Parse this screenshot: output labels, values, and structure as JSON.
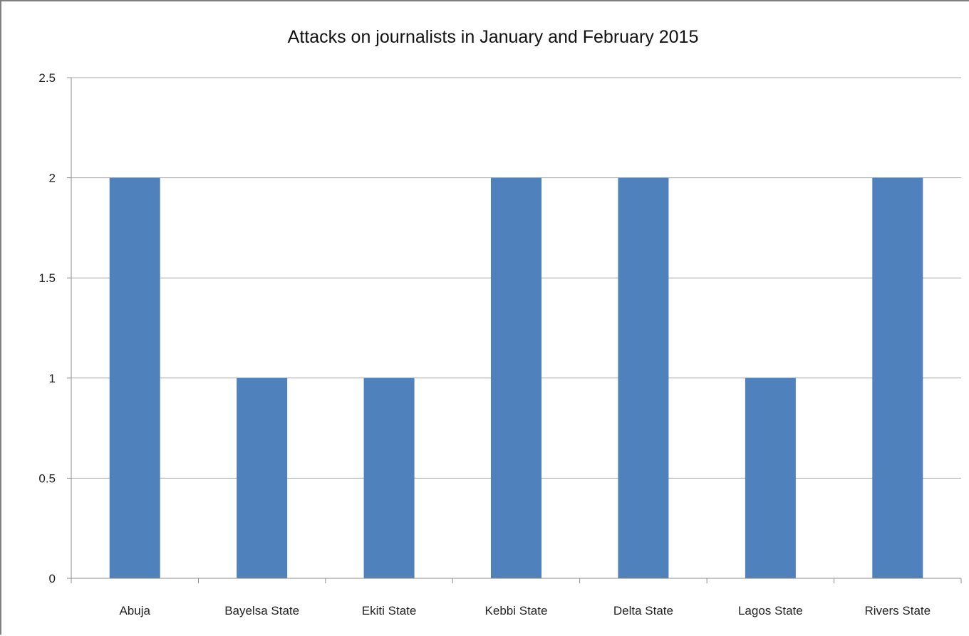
{
  "chart_data": {
    "type": "bar",
    "title": "Attacks on journalists in January and February 2015",
    "xlabel": "",
    "ylabel": "",
    "categories": [
      "Abuja",
      "Bayelsa State",
      "Ekiti State",
      "Kebbi State",
      "Delta State",
      "Lagos State",
      "Rivers State"
    ],
    "values": [
      2,
      1,
      1,
      2,
      2,
      1,
      2
    ],
    "ylim": [
      0,
      2.5
    ],
    "yticks": [
      "0",
      "0.5",
      "1",
      "1.5",
      "2",
      "2.5"
    ],
    "grid": true,
    "legend": "none",
    "colors": {
      "bar": "#4f81bd",
      "gridline": "#a6a6a6",
      "axis": "#8c8c8c"
    }
  }
}
